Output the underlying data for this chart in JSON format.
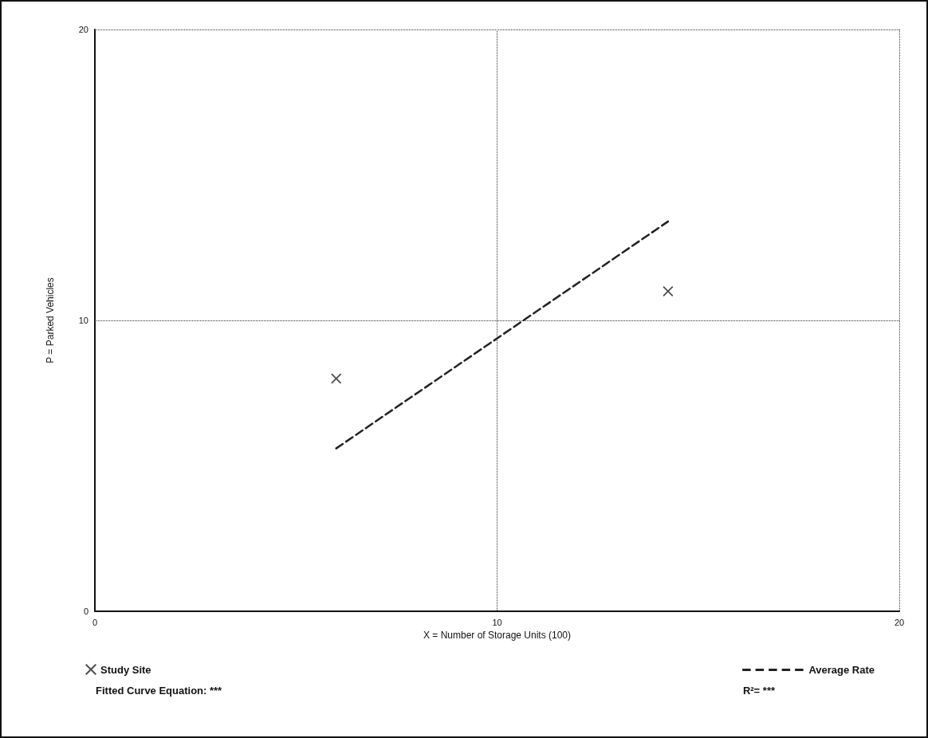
{
  "chart_data": {
    "type": "scatter",
    "xlabel": "X = Number of Storage Units (100)",
    "ylabel": "P = Parked Vehicles",
    "xlim": [
      0,
      20
    ],
    "ylim": [
      0,
      20
    ],
    "xticks": [
      0,
      10,
      20
    ],
    "yticks": [
      0,
      10,
      20
    ],
    "grid": true,
    "legend": "bottom",
    "x": [
      6,
      14.25
    ],
    "series": [
      {
        "name": "Study Site",
        "color": "#222222",
        "values": [
          8,
          11
        ],
        "marker": "cross"
      },
      {
        "name": "Average Rate",
        "type": "line",
        "color": "#222222",
        "values": [
          5.6,
          13.4
        ],
        "line_style": "dashed",
        "marker": "none"
      }
    ],
    "annotations": [
      "Fitted Curve Equation: ***",
      "R²= ***"
    ]
  }
}
